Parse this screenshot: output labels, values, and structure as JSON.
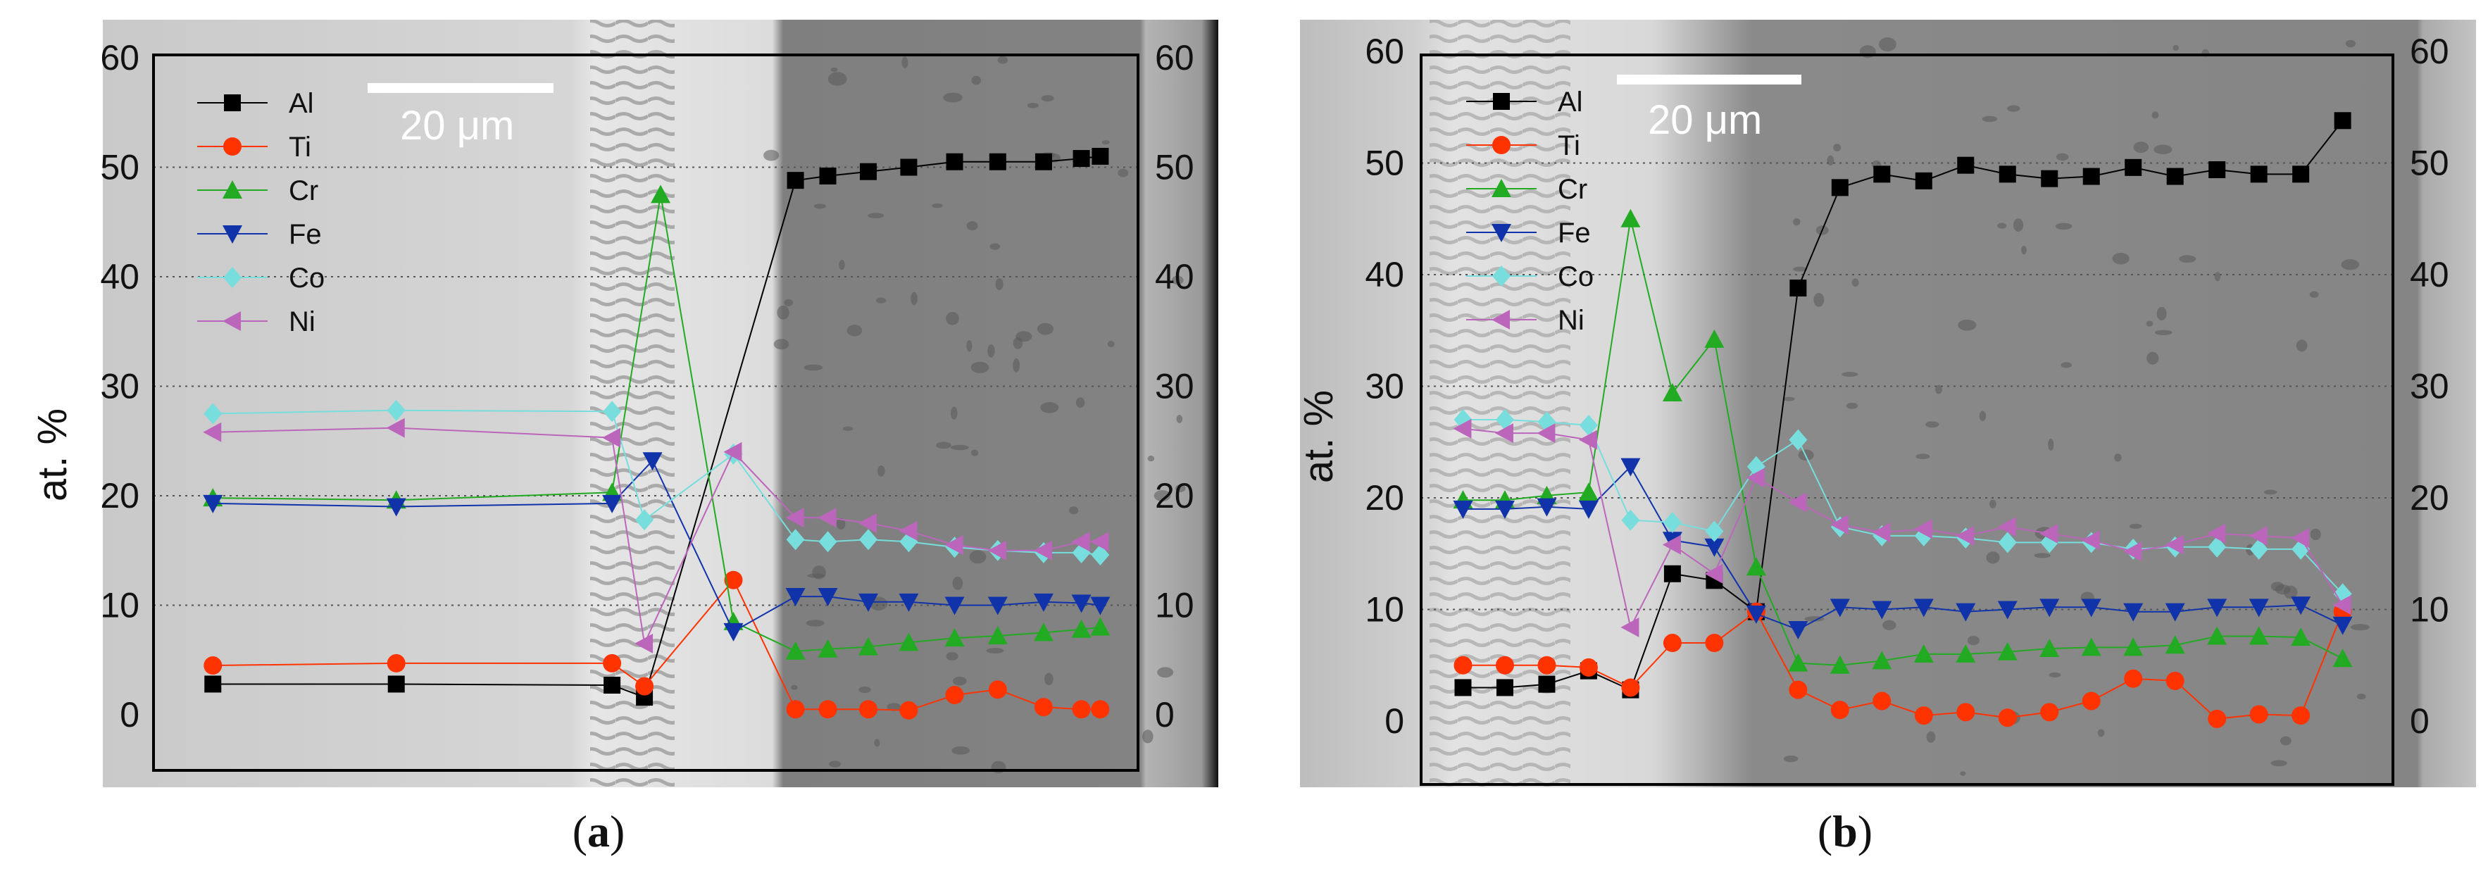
{
  "chart_data": [
    {
      "type": "line",
      "panel_label": "a",
      "caption_open": "(",
      "caption_close": ")",
      "ylabel": "at. %",
      "ylim": [
        -5,
        60
      ],
      "yticks": [
        0,
        10,
        20,
        30,
        40,
        50,
        60
      ],
      "grid": "dotted horizontal",
      "legend_position": "top-left",
      "scalebar": "20 μm",
      "series": [
        {
          "name": "Al",
          "color": "#000000",
          "marker": "square",
          "points": [
            [
              2.2,
              2.8
            ],
            [
              9.0,
              2.8
            ],
            [
              17.0,
              2.7
            ],
            [
              18.2,
              1.6
            ],
            [
              23.8,
              48.8
            ],
            [
              25.0,
              49.2
            ],
            [
              26.5,
              49.6
            ],
            [
              28.0,
              50.0
            ],
            [
              29.7,
              50.5
            ],
            [
              31.3,
              50.5
            ],
            [
              33.0,
              50.5
            ],
            [
              34.4,
              50.8
            ],
            [
              35.1,
              51.0
            ]
          ]
        },
        {
          "name": "Ti",
          "color": "#ff3300",
          "marker": "circle",
          "points": [
            [
              2.2,
              4.5
            ],
            [
              9.0,
              4.7
            ],
            [
              17.0,
              4.7
            ],
            [
              18.2,
              2.6
            ],
            [
              21.5,
              12.3
            ],
            [
              23.8,
              0.5
            ],
            [
              25.0,
              0.5
            ],
            [
              26.5,
              0.5
            ],
            [
              28.0,
              0.4
            ],
            [
              29.7,
              1.8
            ],
            [
              31.3,
              2.3
            ],
            [
              33.0,
              0.7
            ],
            [
              34.4,
              0.5
            ],
            [
              35.1,
              0.5
            ]
          ]
        },
        {
          "name": "Cr",
          "color": "#22aa22",
          "marker": "triangle-up",
          "points": [
            [
              2.2,
              19.8
            ],
            [
              9.0,
              19.6
            ],
            [
              17.0,
              20.3
            ],
            [
              18.8,
              47.5
            ],
            [
              21.5,
              8.5
            ],
            [
              23.8,
              5.8
            ],
            [
              25.0,
              6.0
            ],
            [
              26.5,
              6.2
            ],
            [
              28.0,
              6.6
            ],
            [
              29.7,
              7.0
            ],
            [
              31.3,
              7.2
            ],
            [
              33.0,
              7.5
            ],
            [
              34.4,
              7.8
            ],
            [
              35.1,
              8.0
            ]
          ]
        },
        {
          "name": "Fe",
          "color": "#1133aa",
          "marker": "triangle-down",
          "points": [
            [
              2.2,
              19.3
            ],
            [
              9.0,
              19.0
            ],
            [
              17.0,
              19.3
            ],
            [
              18.5,
              23.2
            ],
            [
              21.5,
              7.6
            ],
            [
              23.8,
              10.8
            ],
            [
              25.0,
              10.8
            ],
            [
              26.5,
              10.3
            ],
            [
              28.0,
              10.3
            ],
            [
              29.7,
              10.0
            ],
            [
              31.3,
              10.0
            ],
            [
              33.0,
              10.3
            ],
            [
              34.4,
              10.2
            ],
            [
              35.1,
              10.0
            ]
          ]
        },
        {
          "name": "Co",
          "color": "#77dddd",
          "marker": "diamond",
          "points": [
            [
              2.2,
              27.5
            ],
            [
              9.0,
              27.8
            ],
            [
              17.0,
              27.7
            ],
            [
              18.2,
              17.8
            ],
            [
              21.5,
              23.8
            ],
            [
              23.8,
              16.0
            ],
            [
              25.0,
              15.8
            ],
            [
              26.5,
              16.0
            ],
            [
              28.0,
              15.8
            ],
            [
              29.7,
              15.3
            ],
            [
              31.3,
              15.0
            ],
            [
              33.0,
              14.8
            ],
            [
              34.4,
              14.8
            ],
            [
              35.1,
              14.6
            ]
          ]
        },
        {
          "name": "Ni",
          "color": "#bb66bb",
          "marker": "triangle-left",
          "points": [
            [
              2.2,
              25.8
            ],
            [
              9.0,
              26.2
            ],
            [
              17.0,
              25.3
            ],
            [
              18.2,
              6.5
            ],
            [
              21.5,
              24.0
            ],
            [
              23.8,
              18.0
            ],
            [
              25.0,
              18.0
            ],
            [
              26.5,
              17.5
            ],
            [
              28.0,
              16.8
            ],
            [
              29.7,
              15.5
            ],
            [
              31.3,
              15.0
            ],
            [
              33.0,
              15.0
            ],
            [
              34.4,
              15.8
            ],
            [
              35.1,
              15.8
            ]
          ]
        }
      ]
    },
    {
      "type": "line",
      "panel_label": "b",
      "caption_open": "(",
      "caption_close": ")",
      "ylabel": "at. %",
      "ylim": [
        -5,
        60
      ],
      "yticks": [
        0,
        10,
        20,
        30,
        40,
        50,
        60
      ],
      "grid": "dotted horizontal",
      "legend_position": "top-left",
      "scalebar": "20 μm",
      "series": [
        {
          "name": "Al",
          "color": "#000000",
          "marker": "square",
          "points": [
            [
              1.0,
              3.0
            ],
            [
              2.0,
              3.0
            ],
            [
              3.0,
              3.3
            ],
            [
              4.0,
              4.5
            ],
            [
              5.0,
              2.8
            ],
            [
              6.0,
              13.2
            ],
            [
              7.0,
              12.6
            ],
            [
              8.0,
              9.8
            ],
            [
              9.0,
              38.8
            ],
            [
              10.0,
              47.8
            ],
            [
              11.0,
              49.0
            ],
            [
              12.0,
              48.4
            ],
            [
              13.0,
              49.8
            ],
            [
              14.0,
              49.0
            ],
            [
              15.0,
              48.6
            ],
            [
              16.0,
              48.8
            ],
            [
              17.0,
              49.6
            ],
            [
              18.0,
              48.8
            ],
            [
              19.0,
              49.4
            ],
            [
              20.0,
              49.0
            ],
            [
              21.0,
              49.0
            ],
            [
              22.0,
              53.8
            ]
          ]
        },
        {
          "name": "Ti",
          "color": "#ff3300",
          "marker": "circle",
          "points": [
            [
              1.0,
              5.0
            ],
            [
              2.0,
              5.0
            ],
            [
              3.0,
              5.0
            ],
            [
              4.0,
              4.8
            ],
            [
              5.0,
              3.0
            ],
            [
              6.0,
              7.0
            ],
            [
              7.0,
              7.0
            ],
            [
              8.0,
              9.8
            ],
            [
              9.0,
              2.8
            ],
            [
              10.0,
              1.0
            ],
            [
              11.0,
              1.8
            ],
            [
              12.0,
              0.5
            ],
            [
              13.0,
              0.8
            ],
            [
              14.0,
              0.3
            ],
            [
              15.0,
              0.8
            ],
            [
              16.0,
              1.8
            ],
            [
              17.0,
              3.8
            ],
            [
              18.0,
              3.6
            ],
            [
              19.0,
              0.2
            ],
            [
              20.0,
              0.6
            ],
            [
              21.0,
              0.5
            ],
            [
              22.0,
              9.8
            ]
          ]
        },
        {
          "name": "Cr",
          "color": "#22aa22",
          "marker": "triangle-up",
          "points": [
            [
              1.0,
              19.8
            ],
            [
              2.0,
              19.8
            ],
            [
              3.0,
              20.2
            ],
            [
              4.0,
              20.5
            ],
            [
              5.0,
              45.0
            ],
            [
              6.0,
              29.4
            ],
            [
              7.0,
              34.2
            ],
            [
              8.0,
              13.8
            ],
            [
              9.0,
              5.2
            ],
            [
              10.0,
              5.0
            ],
            [
              11.0,
              5.4
            ],
            [
              12.0,
              6.0
            ],
            [
              13.0,
              6.0
            ],
            [
              14.0,
              6.2
            ],
            [
              15.0,
              6.5
            ],
            [
              16.0,
              6.6
            ],
            [
              17.0,
              6.6
            ],
            [
              18.0,
              6.8
            ],
            [
              19.0,
              7.6
            ],
            [
              20.0,
              7.6
            ],
            [
              21.0,
              7.5
            ],
            [
              22.0,
              5.6
            ]
          ]
        },
        {
          "name": "Fe",
          "color": "#1133aa",
          "marker": "triangle-down",
          "points": [
            [
              1.0,
              19.0
            ],
            [
              2.0,
              19.0
            ],
            [
              3.0,
              19.2
            ],
            [
              4.0,
              19.0
            ],
            [
              5.0,
              22.8
            ],
            [
              6.0,
              16.2
            ],
            [
              7.0,
              15.6
            ],
            [
              8.0,
              9.6
            ],
            [
              9.0,
              8.2
            ],
            [
              10.0,
              10.2
            ],
            [
              11.0,
              10.0
            ],
            [
              12.0,
              10.2
            ],
            [
              13.0,
              9.8
            ],
            [
              14.0,
              10.0
            ],
            [
              15.0,
              10.2
            ],
            [
              16.0,
              10.2
            ],
            [
              17.0,
              9.8
            ],
            [
              18.0,
              9.8
            ],
            [
              19.0,
              10.2
            ],
            [
              20.0,
              10.2
            ],
            [
              21.0,
              10.4
            ],
            [
              22.0,
              8.6
            ]
          ]
        },
        {
          "name": "Co",
          "color": "#77dddd",
          "marker": "diamond",
          "points": [
            [
              1.0,
              27.0
            ],
            [
              2.0,
              27.0
            ],
            [
              3.0,
              26.8
            ],
            [
              4.0,
              26.5
            ],
            [
              5.0,
              18.0
            ],
            [
              6.0,
              17.8
            ],
            [
              7.0,
              17.0
            ],
            [
              8.0,
              22.8
            ],
            [
              9.0,
              25.2
            ],
            [
              10.0,
              17.4
            ],
            [
              11.0,
              16.6
            ],
            [
              12.0,
              16.6
            ],
            [
              13.0,
              16.4
            ],
            [
              14.0,
              16.0
            ],
            [
              15.0,
              16.0
            ],
            [
              16.0,
              16.0
            ],
            [
              17.0,
              15.4
            ],
            [
              18.0,
              15.6
            ],
            [
              19.0,
              15.6
            ],
            [
              20.0,
              15.4
            ],
            [
              21.0,
              15.4
            ],
            [
              22.0,
              11.4
            ]
          ]
        },
        {
          "name": "Ni",
          "color": "#bb66bb",
          "marker": "triangle-left",
          "points": [
            [
              1.0,
              26.2
            ],
            [
              2.0,
              25.8
            ],
            [
              3.0,
              25.8
            ],
            [
              4.0,
              25.2
            ],
            [
              5.0,
              8.4
            ],
            [
              6.0,
              15.8
            ],
            [
              7.0,
              13.2
            ],
            [
              8.0,
              21.8
            ],
            [
              9.0,
              19.6
            ],
            [
              10.0,
              17.6
            ],
            [
              11.0,
              16.9
            ],
            [
              12.0,
              17.2
            ],
            [
              13.0,
              16.6
            ],
            [
              14.0,
              17.4
            ],
            [
              15.0,
              16.8
            ],
            [
              16.0,
              16.2
            ],
            [
              17.0,
              15.2
            ],
            [
              18.0,
              15.8
            ],
            [
              19.0,
              16.8
            ],
            [
              20.0,
              16.6
            ],
            [
              21.0,
              16.4
            ],
            [
              22.0,
              10.4
            ]
          ]
        }
      ]
    }
  ]
}
